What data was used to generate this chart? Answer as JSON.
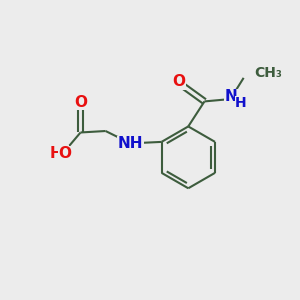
{
  "bg_color": "#ececec",
  "bond_color": "#3d5c3d",
  "bond_width": 1.5,
  "atom_colors": {
    "O": "#e81010",
    "N": "#1010cc",
    "C": "#3d5c3d",
    "H": "#3d5c3d"
  },
  "font_size": 11,
  "figsize": [
    3.0,
    3.0
  ],
  "dpi": 100
}
